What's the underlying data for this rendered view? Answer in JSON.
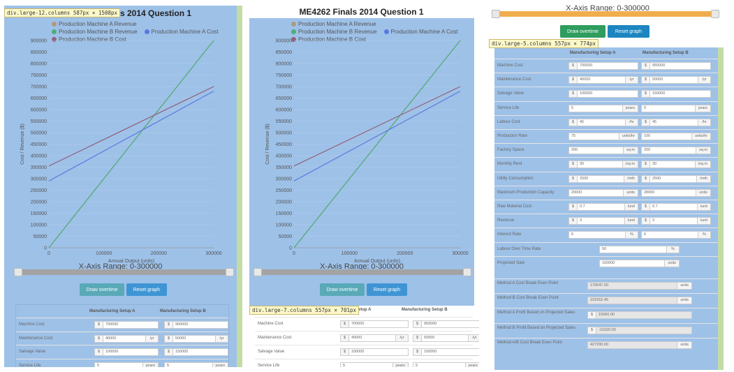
{
  "charts": {
    "title_left_partial": "Finals 2014 Question 1",
    "title_middle": "ME4262 Finals 2014 Question 1",
    "xlabel": "Annual Output (units)",
    "ylabel": "Cost / Revenue ($)",
    "xrange_label": "X-Axis Range: 0-300000",
    "legend": [
      {
        "name": "Production Machine A Revenue",
        "color": "#b0997f"
      },
      {
        "name": "Production Machine B Revenue",
        "color": "#4cae7a"
      },
      {
        "name": "Production Machine A Cost",
        "color": "#5b78e0"
      },
      {
        "name": "Production Machine B Cost",
        "color": "#915f7b"
      }
    ]
  },
  "chart_data": {
    "type": "line",
    "title": "ME4262 Finals 2014 Question 1",
    "xlabel": "Annual Output (units)",
    "ylabel": "Cost / Revenue ($)",
    "xlim": [
      0,
      300000
    ],
    "ylim": [
      0,
      900000
    ],
    "x_ticks": [
      0,
      100000,
      200000,
      300000
    ],
    "y_ticks": [
      0,
      50000,
      100000,
      150000,
      200000,
      250000,
      300000,
      350000,
      400000,
      450000,
      500000,
      550000,
      600000,
      650000,
      700000,
      750000,
      800000,
      850000,
      900000
    ],
    "grid": true,
    "legend_position": "top",
    "series": [
      {
        "name": "Production Machine A Revenue",
        "color": "#b0997f",
        "x": [
          0,
          300000
        ],
        "y": [
          0,
          900000
        ]
      },
      {
        "name": "Production Machine B Revenue",
        "color": "#4cae7a",
        "x": [
          0,
          300000
        ],
        "y": [
          0,
          900000
        ]
      },
      {
        "name": "Production Machine A Cost",
        "color": "#5b78e0",
        "x": [
          0,
          300000
        ],
        "y": [
          290000,
          680000
        ]
      },
      {
        "name": "Production Machine B Cost",
        "color": "#915f7b",
        "x": [
          0,
          300000
        ],
        "y": [
          355000,
          700000
        ]
      }
    ]
  },
  "tooltips": {
    "left": "div.large-12.columns 587px × 1508px",
    "middle": "div.large-7.columns 557px × 701px",
    "right": "div.large-5.columns 557px × 774px"
  },
  "buttons": {
    "draw_overtime": "Draw overtime",
    "reset_graph": "Reset graph"
  },
  "form": {
    "col_a": "Manufacturing Setup A",
    "col_b": "Manufacturing Setup B",
    "col_a_partial": "cturing Setup A",
    "rows": [
      {
        "label": "Machine Cost",
        "pre": "$",
        "a": "700000",
        "b": "950000",
        "suf": ""
      },
      {
        "label": "Maintenance Cost",
        "pre": "$",
        "a": "40000",
        "b": "50000",
        "suf": "/yr"
      },
      {
        "label": "Salvage Value",
        "pre": "$",
        "a": "100000",
        "b": "150000",
        "suf": ""
      },
      {
        "label": "Service Life",
        "pre": "",
        "a": "5",
        "b": "5",
        "suf": "years"
      },
      {
        "label": "Labour Cost",
        "pre": "$",
        "a": "45",
        "b": "45",
        "suf": "/hr"
      },
      {
        "label": "Production Rate",
        "pre": "",
        "a": "75",
        "b": "100",
        "suf": "units/hr"
      },
      {
        "label": "Factory Space",
        "pre": "",
        "a": "200",
        "b": "200",
        "suf": "sq m"
      },
      {
        "label": "Monthly Rent",
        "pre": "$",
        "a": "30",
        "b": "30",
        "suf": "/sq m"
      },
      {
        "label": "Utility Consumption",
        "pre": "$",
        "a": "2500",
        "b": "2500",
        "suf": "/mth"
      },
      {
        "label": "Maximum Production Capacity",
        "pre": "",
        "a": "20000",
        "b": "28000",
        "suf": "units"
      },
      {
        "label": "Raw Material Cost",
        "pre": "$",
        "a": "0.7",
        "b": "0.7",
        "suf": "/unit"
      },
      {
        "label": "Revenue",
        "pre": "$",
        "a": "3",
        "b": "3",
        "suf": "/unit"
      },
      {
        "label": "Interest Rate",
        "pre": "",
        "a": "6",
        "b": "6",
        "suf": "%"
      }
    ],
    "single_rows": [
      {
        "label": "Labour Over Time Rate",
        "value": "50",
        "suf": "%"
      },
      {
        "label": "Projected Sale",
        "value": "160000",
        "suf": "units"
      }
    ],
    "results": [
      {
        "label": "Method A Cost Break Even Point",
        "pre": "",
        "value": "170547.00",
        "suf": "units"
      },
      {
        "label": "Method B Cost Break Even Point",
        "pre": "",
        "value": "191552.45",
        "suf": "units"
      },
      {
        "label": "Method A Profit Based on Projected Sales",
        "pre": "$",
        "value": "15560.00",
        "suf": ""
      },
      {
        "label": "Method B Profit Based on Projected Sales",
        "pre": "$",
        "value": "-21620.00",
        "suf": ""
      },
      {
        "label": "Method A/B Cost Break Even Point",
        "pre": "",
        "value": "427200.00",
        "suf": "units"
      }
    ]
  }
}
